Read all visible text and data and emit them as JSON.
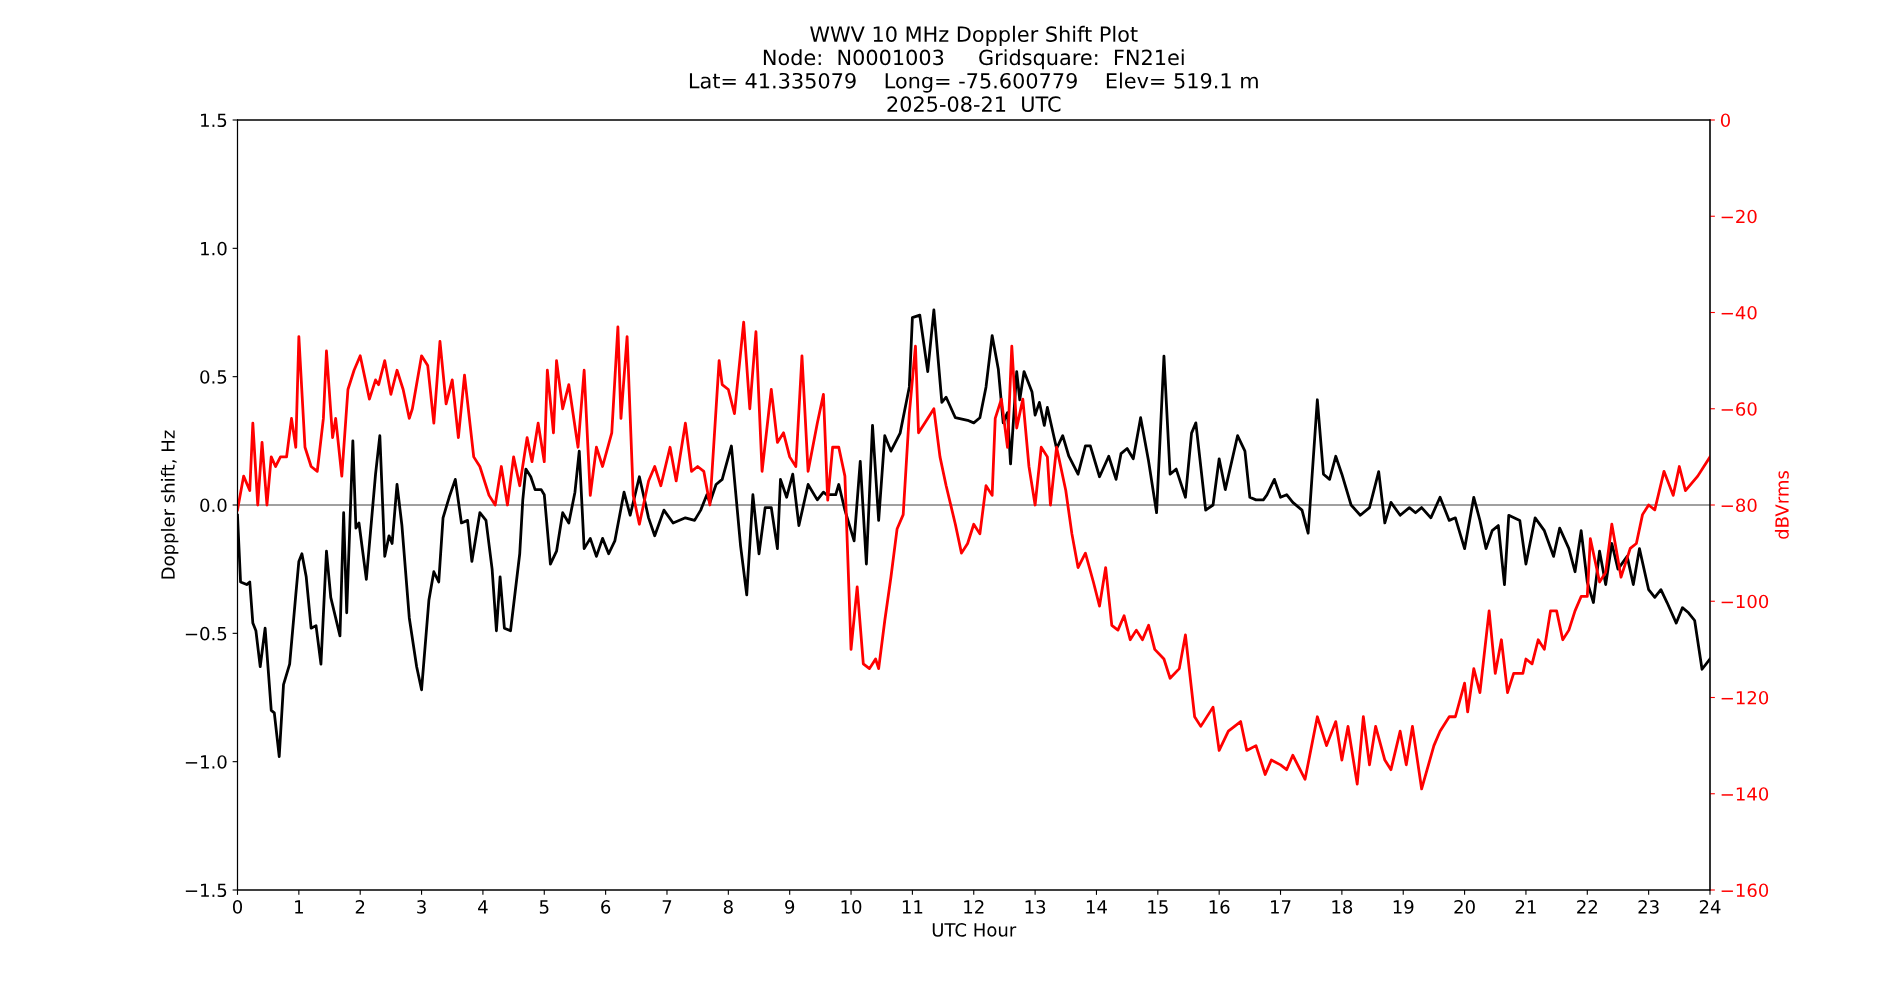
{
  "chart_data": {
    "type": "line",
    "title": "WWV 10 MHz Doppler Shift Plot\nNode:  N0001003     Gridsquare:  FN21ei\nLat= 41.335079    Long= -75.600779    Elev= 519.1 m\n2025-08-21  UTC",
    "xlabel": "UTC Hour",
    "ylabel": "Doppler shift, Hz",
    "y2label": "dBVrms",
    "xlim": [
      0,
      24
    ],
    "xticks": [
      0,
      1,
      2,
      3,
      4,
      5,
      6,
      7,
      8,
      9,
      10,
      11,
      12,
      13,
      14,
      15,
      16,
      17,
      18,
      19,
      20,
      21,
      22,
      23,
      24
    ],
    "ylim": [
      -1.5,
      1.5
    ],
    "yticks": [
      {
        "value": -1.5,
        "label": "−1.5"
      },
      {
        "value": -1.0,
        "label": "−1.0"
      },
      {
        "value": -0.5,
        "label": "−0.5"
      },
      {
        "value": 0,
        "label": "0.0"
      },
      {
        "value": 0.5,
        "label": "0.5"
      },
      {
        "value": 1.0,
        "label": "1.0"
      },
      {
        "value": 1.5,
        "label": "1.5"
      }
    ],
    "y2lim": [
      -160,
      0
    ],
    "y2ticks": [
      {
        "value": -160,
        "label": "−160"
      },
      {
        "value": -140,
        "label": "−140"
      },
      {
        "value": -120,
        "label": "−120"
      },
      {
        "value": -100,
        "label": "−100"
      },
      {
        "value": -80,
        "label": "−80"
      },
      {
        "value": -60,
        "label": "−60"
      },
      {
        "value": -40,
        "label": "−40"
      },
      {
        "value": -20,
        "label": "−20"
      },
      {
        "value": 0,
        "label": "0"
      }
    ],
    "grid": false,
    "line_style": "solid",
    "marker": "none",
    "ref_lines": [
      {
        "axis": "y",
        "value": 0,
        "color": "#808080",
        "line_style": "solid"
      }
    ],
    "series": [
      {
        "color": "#000000",
        "x": [
          0,
          0.05,
          0.15,
          0.2,
          0.25,
          0.3,
          0.37,
          0.45,
          0.55,
          0.6,
          0.68,
          0.75,
          0.85,
          0.95,
          1.0,
          1.05,
          1.12,
          1.2,
          1.28,
          1.36,
          1.45,
          1.52,
          1.6,
          1.67,
          1.73,
          1.78,
          1.88,
          1.93,
          1.98,
          2.1,
          2.25,
          2.32,
          2.4,
          2.47,
          2.52,
          2.6,
          2.68,
          2.8,
          2.92,
          3.0,
          3.12,
          3.2,
          3.28,
          3.35,
          3.45,
          3.55,
          3.65,
          3.75,
          3.82,
          3.95,
          4.05,
          4.15,
          4.22,
          4.28,
          4.35,
          4.45,
          4.6,
          4.65,
          4.7,
          4.78,
          4.85,
          4.95,
          5.0,
          5.1,
          5.2,
          5.3,
          5.4,
          5.5,
          5.57,
          5.65,
          5.75,
          5.85,
          5.95,
          6.05,
          6.15,
          6.3,
          6.4,
          6.55,
          6.7,
          6.8,
          6.95,
          7.1,
          7.3,
          7.45,
          7.55,
          7.65,
          7.7,
          7.8,
          7.9,
          8.05,
          8.2,
          8.3,
          8.4,
          8.5,
          8.6,
          8.7,
          8.8,
          8.85,
          8.95,
          9.05,
          9.15,
          9.3,
          9.45,
          9.55,
          9.6,
          9.75,
          9.8,
          9.9,
          10.05,
          10.15,
          10.25,
          10.35,
          10.45,
          10.55,
          10.65,
          10.8,
          10.95,
          11.0,
          11.12,
          11.25,
          11.35,
          11.48,
          11.55,
          11.7,
          11.9,
          12.0,
          12.1,
          12.2,
          12.3,
          12.4,
          12.48,
          12.55,
          12.6,
          12.7,
          12.75,
          12.82,
          12.95,
          13.0,
          13.07,
          13.15,
          13.2,
          13.35,
          13.45,
          13.55,
          13.7,
          13.82,
          13.9,
          14.05,
          14.2,
          14.32,
          14.4,
          14.5,
          14.6,
          14.72,
          14.85,
          14.98,
          15.1,
          15.2,
          15.3,
          15.45,
          15.55,
          15.62,
          15.78,
          15.9,
          16.0,
          16.1,
          16.3,
          16.42,
          16.5,
          16.6,
          16.72,
          16.78,
          16.9,
          17.0,
          17.1,
          17.2,
          17.35,
          17.45,
          17.6,
          17.7,
          17.8,
          17.9,
          18.0,
          18.15,
          18.3,
          18.45,
          18.6,
          18.7,
          18.8,
          18.95,
          19.1,
          19.2,
          19.3,
          19.45,
          19.6,
          19.75,
          19.85,
          20.0,
          20.15,
          20.25,
          20.35,
          20.45,
          20.55,
          20.65,
          20.72,
          20.9,
          21.0,
          21.15,
          21.3,
          21.45,
          21.55,
          21.7,
          21.8,
          21.9,
          22.0,
          22.1,
          22.2,
          22.3,
          22.4,
          22.5,
          22.65,
          22.75,
          22.85,
          23.0,
          23.1,
          23.2,
          23.3,
          23.45,
          23.55,
          23.65,
          23.75,
          23.87,
          24.0
        ],
        "values": [
          -0.04,
          -0.3,
          -0.31,
          -0.3,
          -0.46,
          -0.49,
          -0.63,
          -0.48,
          -0.8,
          -0.81,
          -0.98,
          -0.7,
          -0.62,
          -0.35,
          -0.22,
          -0.19,
          -0.28,
          -0.48,
          -0.47,
          -0.62,
          -0.18,
          -0.36,
          -0.44,
          -0.51,
          -0.03,
          -0.42,
          0.25,
          -0.09,
          -0.07,
          -0.29,
          0.12,
          0.27,
          -0.2,
          -0.12,
          -0.15,
          0.08,
          -0.08,
          -0.44,
          -0.63,
          -0.72,
          -0.37,
          -0.26,
          -0.3,
          -0.05,
          0.03,
          0.1,
          -0.07,
          -0.06,
          -0.22,
          -0.03,
          -0.06,
          -0.25,
          -0.49,
          -0.28,
          -0.48,
          -0.49,
          -0.19,
          0.02,
          0.14,
          0.11,
          0.06,
          0.06,
          0.04,
          -0.23,
          -0.18,
          -0.03,
          -0.07,
          0.05,
          0.21,
          -0.17,
          -0.13,
          -0.2,
          -0.13,
          -0.19,
          -0.14,
          0.05,
          -0.04,
          0.11,
          -0.05,
          -0.12,
          -0.02,
          -0.07,
          -0.05,
          -0.06,
          -0.02,
          0.04,
          0.01,
          0.08,
          0.1,
          0.23,
          -0.16,
          -0.35,
          0.04,
          -0.19,
          -0.01,
          -0.01,
          -0.17,
          0.1,
          0.03,
          0.12,
          -0.08,
          0.08,
          0.02,
          0.05,
          0.04,
          0.04,
          0.08,
          -0.02,
          -0.14,
          0.17,
          -0.23,
          0.31,
          -0.06,
          0.27,
          0.21,
          0.28,
          0.46,
          0.73,
          0.74,
          0.52,
          0.76,
          0.4,
          0.42,
          0.34,
          0.33,
          0.32,
          0.34,
          0.46,
          0.66,
          0.53,
          0.32,
          0.36,
          0.16,
          0.52,
          0.41,
          0.52,
          0.44,
          0.35,
          0.4,
          0.31,
          0.38,
          0.22,
          0.27,
          0.19,
          0.12,
          0.23,
          0.23,
          0.11,
          0.19,
          0.1,
          0.2,
          0.22,
          0.18,
          0.34,
          0.17,
          -0.03,
          0.58,
          0.12,
          0.14,
          0.03,
          0.28,
          0.32,
          -0.02,
          0.0,
          0.18,
          0.06,
          0.27,
          0.21,
          0.03,
          0.02,
          0.02,
          0.04,
          0.1,
          0.03,
          0.04,
          0.01,
          -0.02,
          -0.11,
          0.41,
          0.12,
          0.1,
          0.19,
          0.12,
          0.0,
          -0.04,
          -0.01,
          0.13,
          -0.07,
          0.01,
          -0.04,
          -0.01,
          -0.03,
          -0.01,
          -0.05,
          0.03,
          -0.06,
          -0.05,
          -0.17,
          0.03,
          -0.06,
          -0.17,
          -0.1,
          -0.08,
          -0.31,
          -0.04,
          -0.06,
          -0.23,
          -0.05,
          -0.1,
          -0.2,
          -0.09,
          -0.17,
          -0.26,
          -0.1,
          -0.3,
          -0.38,
          -0.18,
          -0.31,
          -0.15,
          -0.25,
          -0.2,
          -0.31,
          -0.17,
          -0.33,
          -0.36,
          -0.33,
          -0.38,
          -0.46,
          -0.4,
          -0.42,
          -0.45,
          -0.64,
          -0.6
        ]
      },
      {
        "color": "#ff0000",
        "axis": "y2",
        "x": [
          0,
          0.1,
          0.2,
          0.25,
          0.33,
          0.4,
          0.48,
          0.55,
          0.62,
          0.7,
          0.8,
          0.88,
          0.95,
          1.0,
          1.1,
          1.2,
          1.3,
          1.4,
          1.45,
          1.55,
          1.6,
          1.7,
          1.8,
          1.9,
          2.0,
          2.15,
          2.25,
          2.3,
          2.4,
          2.5,
          2.6,
          2.7,
          2.8,
          2.85,
          3.0,
          3.1,
          3.2,
          3.3,
          3.4,
          3.5,
          3.6,
          3.7,
          3.85,
          3.95,
          4.1,
          4.2,
          4.3,
          4.4,
          4.5,
          4.6,
          4.72,
          4.8,
          4.9,
          5.0,
          5.05,
          5.15,
          5.2,
          5.3,
          5.4,
          5.55,
          5.65,
          5.75,
          5.85,
          5.95,
          6.1,
          6.2,
          6.25,
          6.35,
          6.45,
          6.55,
          6.7,
          6.8,
          6.9,
          7.05,
          7.15,
          7.3,
          7.4,
          7.5,
          7.6,
          7.7,
          7.85,
          7.9,
          8.0,
          8.1,
          8.25,
          8.35,
          8.45,
          8.55,
          8.7,
          8.8,
          8.9,
          9.0,
          9.1,
          9.2,
          9.3,
          9.45,
          9.55,
          9.62,
          9.7,
          9.8,
          9.9,
          10.0,
          10.1,
          10.2,
          10.3,
          10.4,
          10.45,
          10.55,
          10.65,
          10.75,
          10.85,
          10.95,
          11.05,
          11.1,
          11.2,
          11.35,
          11.45,
          11.55,
          11.7,
          11.8,
          11.9,
          12.0,
          12.1,
          12.2,
          12.3,
          12.35,
          12.45,
          12.55,
          12.62,
          12.7,
          12.8,
          12.9,
          13.0,
          13.1,
          13.2,
          13.25,
          13.35,
          13.5,
          13.6,
          13.7,
          13.82,
          13.95,
          14.05,
          14.15,
          14.25,
          14.35,
          14.45,
          14.55,
          14.65,
          14.75,
          14.85,
          14.95,
          15.1,
          15.2,
          15.35,
          15.45,
          15.6,
          15.7,
          15.9,
          16.0,
          16.15,
          16.35,
          16.45,
          16.6,
          16.75,
          16.85,
          17.0,
          17.1,
          17.2,
          17.4,
          17.6,
          17.75,
          17.9,
          18.0,
          18.1,
          18.25,
          18.35,
          18.45,
          18.55,
          18.7,
          18.8,
          18.95,
          19.05,
          19.15,
          19.3,
          19.5,
          19.6,
          19.75,
          19.85,
          20.0,
          20.05,
          20.15,
          20.25,
          20.4,
          20.5,
          20.6,
          20.7,
          20.8,
          20.95,
          21.0,
          21.1,
          21.2,
          21.3,
          21.4,
          21.5,
          21.6,
          21.7,
          21.8,
          21.9,
          22.0,
          22.05,
          22.2,
          22.3,
          22.4,
          22.55,
          22.7,
          22.8,
          22.9,
          23.0,
          23.1,
          23.25,
          23.4,
          23.5,
          23.6,
          23.8,
          23.9,
          24.0
        ],
        "values": [
          -81,
          -74,
          -77,
          -63,
          -80,
          -67,
          -80,
          -70,
          -72,
          -70,
          -70,
          -62,
          -68,
          -45,
          -68,
          -72,
          -73,
          -62,
          -48,
          -66,
          -62,
          -74,
          -56,
          -52,
          -49,
          -58,
          -54,
          -55,
          -50,
          -57,
          -52,
          -56,
          -62,
          -60,
          -49,
          -51,
          -63,
          -46,
          -59,
          -54,
          -66,
          -53,
          -70,
          -72,
          -78,
          -80,
          -72,
          -80,
          -70,
          -76,
          -66,
          -71,
          -63,
          -71,
          -52,
          -65,
          -50,
          -60,
          -55,
          -68,
          -52,
          -78,
          -68,
          -72,
          -65,
          -43,
          -62,
          -45,
          -78,
          -84,
          -75,
          -72,
          -76,
          -68,
          -75,
          -63,
          -73,
          -72,
          -73,
          -80,
          -50,
          -55,
          -56,
          -61,
          -42,
          -60,
          -44,
          -73,
          -56,
          -67,
          -65,
          -70,
          -72,
          -49,
          -73,
          -63,
          -57,
          -79,
          -68,
          -68,
          -74,
          -110,
          -97,
          -113,
          -114,
          -112,
          -114,
          -104,
          -95,
          -85,
          -82,
          -61,
          -47,
          -65,
          -63,
          -60,
          -70,
          -76,
          -84,
          -90,
          -88,
          -84,
          -86,
          -76,
          -78,
          -62,
          -58,
          -68,
          -47,
          -64,
          -58,
          -72,
          -80,
          -68,
          -70,
          -80,
          -68,
          -77,
          -86,
          -93,
          -90,
          -96,
          -101,
          -93,
          -105,
          -106,
          -103,
          -108,
          -106,
          -108,
          -105,
          -110,
          -112,
          -116,
          -114,
          -107,
          -124,
          -126,
          -122,
          -131,
          -127,
          -125,
          -131,
          -130,
          -136,
          -133,
          -134,
          -135,
          -132,
          -137,
          -124,
          -130,
          -125,
          -133,
          -126,
          -138,
          -124,
          -134,
          -126,
          -133,
          -135,
          -127,
          -134,
          -126,
          -139,
          -130,
          -127,
          -124,
          -124,
          -117,
          -123,
          -114,
          -119,
          -102,
          -115,
          -108,
          -119,
          -115,
          -115,
          -112,
          -113,
          -108,
          -110,
          -102,
          -102,
          -108,
          -106,
          -102,
          -99,
          -99,
          -87,
          -96,
          -94,
          -84,
          -95,
          -89,
          -88,
          -82,
          -80,
          -81,
          -73,
          -78,
          -72,
          -77,
          -74,
          -72,
          -70
        ]
      }
    ]
  }
}
